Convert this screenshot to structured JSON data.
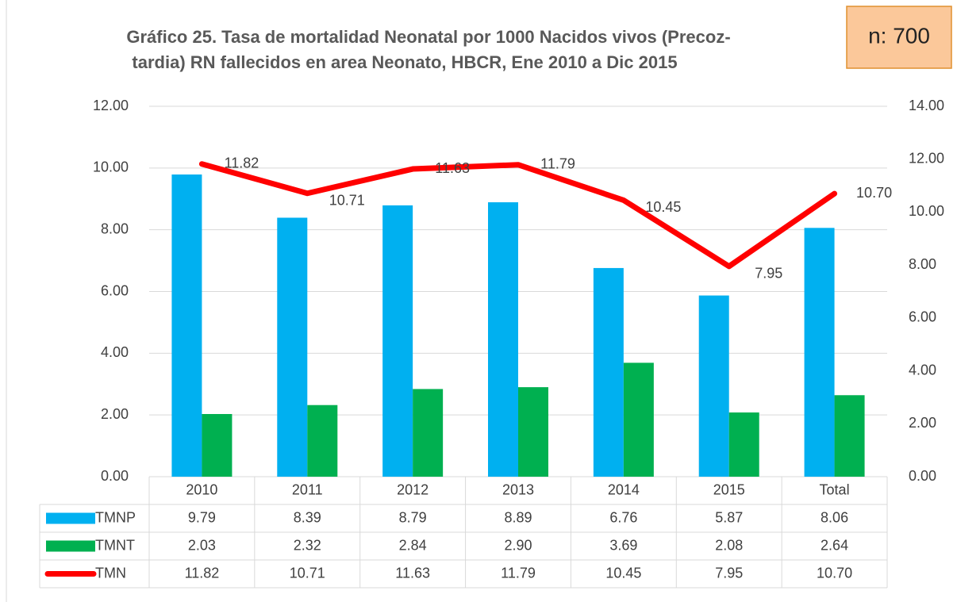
{
  "chart_data": {
    "type": "bar-line",
    "title": "Gráfico 25. Tasa de mortalidad Neonatal por 1000 Nacidos vivos (Precoz-",
    "subtitle": "tardia) RN fallecidos en area Neonato, HBCR, Ene 2010 a Dic 2015",
    "annotation": "n: 700",
    "categories": [
      "2010",
      "2011",
      "2012",
      "2013",
      "2014",
      "2015",
      "Total"
    ],
    "series": [
      {
        "name": "TMNP",
        "type": "bar",
        "color": "#00b0f0",
        "values": [
          9.79,
          8.39,
          8.79,
          8.89,
          6.76,
          5.87,
          8.06
        ],
        "value_labels": [
          "9.79",
          "8.39",
          "8.79",
          "8.89",
          "6.76",
          "5.87",
          "8.06"
        ]
      },
      {
        "name": "TMNT",
        "type": "bar",
        "color": "#00b050",
        "values": [
          2.03,
          2.32,
          2.84,
          2.9,
          3.69,
          2.08,
          2.64
        ],
        "value_labels": [
          "2.03",
          "2.32",
          "2.84",
          "2.90",
          "3.69",
          "2.08",
          "2.64"
        ]
      },
      {
        "name": "TMN",
        "type": "line",
        "axis": "y2",
        "color": "#ff0000",
        "values": [
          11.82,
          10.71,
          11.63,
          11.79,
          10.45,
          7.95,
          10.7
        ],
        "value_labels": [
          "11.82",
          "10.71",
          "11.63",
          "11.79",
          "10.45",
          "7.95",
          "10.70"
        ]
      }
    ],
    "ylim": [
      0,
      12
    ],
    "yticks": [
      {
        "value": 0,
        "label": "0.00"
      },
      {
        "value": 2,
        "label": "2.00"
      },
      {
        "value": 4,
        "label": "4.00"
      },
      {
        "value": 6,
        "label": "6.00"
      },
      {
        "value": 8,
        "label": "8.00"
      },
      {
        "value": 10,
        "label": "10.00"
      },
      {
        "value": 12,
        "label": "12.00"
      }
    ],
    "y2lim": [
      0,
      14
    ],
    "y2ticks": [
      {
        "value": 0,
        "label": "0.00"
      },
      {
        "value": 2,
        "label": "2.00"
      },
      {
        "value": 4,
        "label": "4.00"
      },
      {
        "value": 6,
        "label": "6.00"
      },
      {
        "value": 8,
        "label": "8.00"
      },
      {
        "value": 10,
        "label": "10.00"
      },
      {
        "value": 12,
        "label": "12.00"
      },
      {
        "value": 14,
        "label": "14.00"
      }
    ],
    "grid": true
  }
}
